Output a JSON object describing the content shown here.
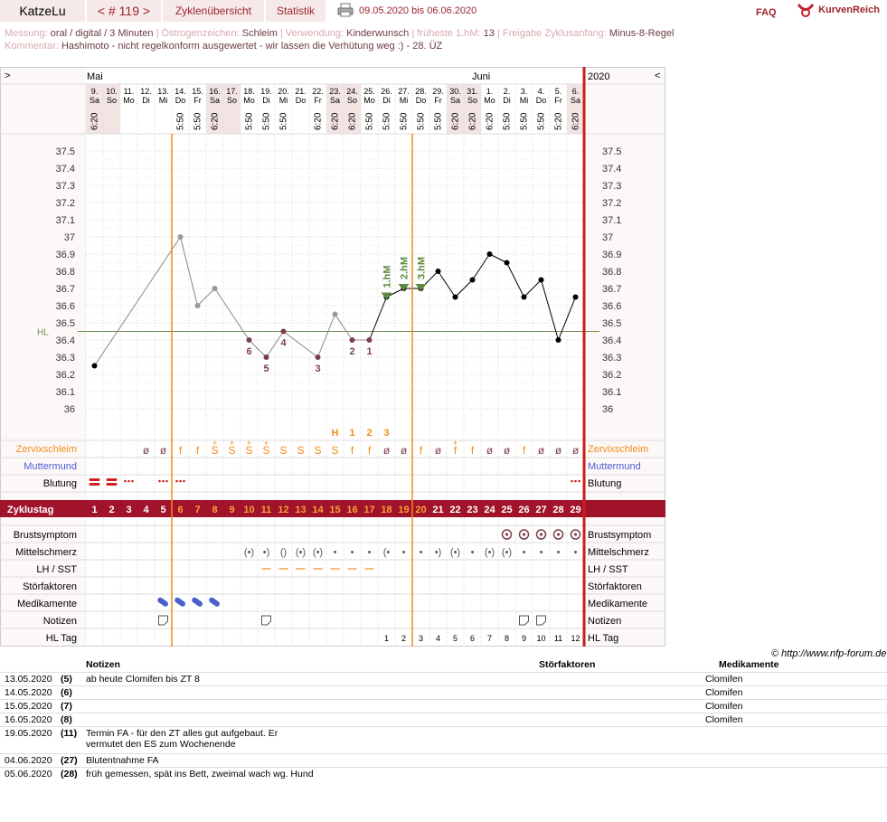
{
  "header": {
    "user": "KatzeLu",
    "cycle_label": "< # 119 >",
    "tab_cycles": "Zyklenübersicht",
    "tab_stats": "Statistik",
    "date_range": "09.05.2020 bis 06.06.2020",
    "faq": "FAQ",
    "brand": "KurvenReich"
  },
  "meta": {
    "measure_label": "Messung:",
    "measure_value": "oral / digital / 3 Minuten",
    "estrogen_label": "Östrogenzeichen:",
    "estrogen_value": "Schleim",
    "use_label": "Verwendung:",
    "use_value": "Kinderwunsch",
    "earliest_label": "früheste 1.hM:",
    "earliest_value": "13",
    "release_label": "Freigabe Zyklusanfang:",
    "release_value": "Minus-8-Regel",
    "comment_label": "Kommentar:",
    "comment_value": "Hashimoto - nicht regelkonform ausgewertet  - wir lassen die Verhütung weg :) - 28. ÜZ"
  },
  "chart_data": {
    "type": "line",
    "nav_left": ">",
    "nav_right": "<",
    "month_may": "Mai",
    "month_june": "Juni",
    "year": "2020",
    "hl_label": "HL",
    "dates": [
      "9.",
      "10.",
      "11.",
      "12.",
      "13.",
      "14.",
      "15.",
      "16.",
      "17.",
      "18.",
      "19.",
      "20.",
      "21.",
      "22.",
      "23.",
      "24.",
      "25.",
      "26.",
      "27.",
      "28.",
      "29.",
      "30.",
      "31.",
      "1.",
      "2.",
      "3.",
      "4.",
      "5.",
      "6."
    ],
    "weekdays": [
      "Sa",
      "So",
      "Mo",
      "Di",
      "Mi",
      "Do",
      "Fr",
      "Sa",
      "So",
      "Mo",
      "Di",
      "Mi",
      "Do",
      "Fr",
      "Sa",
      "So",
      "Mo",
      "Di",
      "Mi",
      "Do",
      "Fr",
      "Sa",
      "So",
      "Mo",
      "Di",
      "Mi",
      "Do",
      "Fr",
      "Sa"
    ],
    "times": [
      "6:20",
      "",
      "",
      "",
      "",
      "5:50",
      "5:50",
      "6:20",
      "",
      "5:50",
      "5:50",
      "5:50",
      "",
      "6:20",
      "6:20",
      "6:20",
      "5:50",
      "5:50",
      "5:50",
      "5:50",
      "5:50",
      "6:20",
      "6:20",
      "6:20",
      "5:50",
      "5:50",
      "5:50",
      "5:20",
      "6:20"
    ],
    "weekend": [
      1,
      1,
      0,
      0,
      0,
      0,
      0,
      1,
      1,
      0,
      0,
      0,
      0,
      0,
      1,
      1,
      0,
      0,
      0,
      0,
      0,
      1,
      1,
      0,
      0,
      0,
      0,
      0,
      1
    ],
    "y_ticks": [
      "37.5",
      "37.4",
      "37.3",
      "37.2",
      "37.1",
      "37",
      "36.9",
      "36.8",
      "36.7",
      "36.6",
      "36.5",
      "36.4",
      "36.3",
      "36.2",
      "36.1",
      "36"
    ],
    "ylim": [
      36.0,
      37.5
    ],
    "coverline": 36.45,
    "temps": [
      36.25,
      null,
      null,
      null,
      null,
      37.0,
      36.6,
      36.7,
      null,
      36.4,
      36.3,
      36.45,
      null,
      36.3,
      36.55,
      36.4,
      36.4,
      36.65,
      36.7,
      36.7,
      36.8,
      36.65,
      36.75,
      36.9,
      36.85,
      36.65,
      36.75,
      36.4,
      36.65
    ],
    "excluded": [
      0,
      0,
      0,
      0,
      0,
      1,
      1,
      1,
      0,
      1,
      1,
      1,
      0,
      1,
      1,
      1,
      1,
      0,
      0,
      0,
      0,
      0,
      0,
      0,
      0,
      0,
      0,
      0,
      0
    ],
    "low_labels": [
      null,
      null,
      null,
      null,
      null,
      null,
      null,
      null,
      null,
      "6",
      "5",
      "4",
      null,
      "3",
      null,
      "2",
      "1",
      null,
      null,
      null,
      null,
      null,
      null,
      null,
      null,
      null,
      null,
      null,
      null
    ],
    "hm_labels": [
      {
        "day": 17,
        "text": "1.hM"
      },
      {
        "day": 18,
        "text": "2.hM"
      },
      {
        "day": 19,
        "text": "3.hM"
      }
    ],
    "peak_labels": [
      null,
      null,
      null,
      null,
      null,
      null,
      null,
      null,
      null,
      null,
      null,
      null,
      null,
      null,
      "H",
      "1",
      "2",
      "3",
      null,
      null,
      null,
      null,
      null,
      null,
      null,
      null,
      null,
      null,
      null
    ],
    "mucus_codes": [
      "",
      "",
      "",
      "ø",
      "ø",
      "f",
      "f",
      "S+",
      "S+",
      "S+",
      "S+",
      "S",
      "S",
      "S",
      "S",
      "f",
      "f",
      "ø",
      "ø",
      "f",
      "ø",
      "f+",
      "f",
      "ø",
      "ø",
      "f",
      "ø",
      "ø",
      "ø"
    ],
    "mucus_label": "Zervixschleim",
    "cervix_label": "Muttermund",
    "bleeding_label": "Blutung",
    "bleeding": [
      "h",
      "h",
      "l",
      "",
      "l",
      "l",
      "",
      "",
      "",
      "",
      "",
      "",
      "",
      "",
      "",
      "",
      "",
      "",
      "",
      "",
      "",
      "",
      "",
      "",
      "",
      "",
      "",
      "",
      "l"
    ],
    "cycle_label": "Zyklustag",
    "cycle_days": [
      "1",
      "2",
      "3",
      "4",
      "5",
      "6",
      "7",
      "8",
      "9",
      "10",
      "11",
      "12",
      "13",
      "14",
      "15",
      "16",
      "17",
      "18",
      "19",
      "20",
      "21",
      "22",
      "23",
      "24",
      "25",
      "26",
      "27",
      "28",
      "29"
    ],
    "breast_label": "Brustsymptom",
    "breast": [
      0,
      0,
      0,
      0,
      0,
      0,
      0,
      0,
      0,
      0,
      0,
      0,
      0,
      0,
      0,
      0,
      0,
      0,
      0,
      0,
      0,
      0,
      0,
      0,
      1,
      1,
      1,
      1,
      1
    ],
    "mittel_label": "Mittelschmerz",
    "mittel": [
      "",
      "",
      "",
      "",
      "",
      "",
      "",
      "",
      "",
      "(•)",
      "•)",
      "()",
      "(•)",
      "(•)",
      "•",
      "•",
      "•",
      "(•",
      "•",
      "•",
      "•)",
      "(•)",
      "•",
      "(•)",
      "(•)",
      "•",
      "•",
      "•",
      "•"
    ],
    "lh_label": "LH / SST",
    "lh": [
      0,
      0,
      0,
      0,
      0,
      0,
      0,
      0,
      0,
      0,
      1,
      1,
      1,
      1,
      1,
      1,
      1,
      0,
      0,
      0,
      0,
      0,
      0,
      0,
      0,
      0,
      0,
      0,
      0
    ],
    "stor_label": "Störfaktoren",
    "med_label": "Medikamente",
    "meds": [
      0,
      0,
      0,
      0,
      1,
      1,
      1,
      1,
      0,
      0,
      0,
      0,
      0,
      0,
      0,
      0,
      0,
      0,
      0,
      0,
      0,
      0,
      0,
      0,
      0,
      0,
      0,
      0,
      0
    ],
    "notes_label": "Notizen",
    "notes_flags": [
      0,
      0,
      0,
      0,
      1,
      0,
      0,
      0,
      0,
      0,
      1,
      0,
      0,
      0,
      0,
      0,
      0,
      0,
      0,
      0,
      0,
      0,
      0,
      0,
      0,
      1,
      1,
      0,
      0
    ],
    "hl_tag_label": "HL Tag",
    "hl_tag": [
      "",
      "",
      "",
      "",
      "",
      "",
      "",
      "",
      "",
      "",
      "",
      "",
      "",
      "",
      "",
      "",
      "",
      "1",
      "2",
      "3",
      "4",
      "5",
      "6",
      "7",
      "8",
      "9",
      "10",
      "11",
      "12"
    ],
    "vline_days": [
      5,
      19
    ],
    "colors": {
      "accent": "#a0252e",
      "orange": "#f28c18",
      "coverline": "#6b8f47",
      "hm": "#5a8a3a",
      "low": "#7b3f47",
      "blue": "#4a5fcf"
    }
  },
  "credit": "© http://www.nfp-forum.de",
  "notes": {
    "col_notes": "Notizen",
    "col_stor": "Störfaktoren",
    "col_med": "Medikamente",
    "rows": [
      {
        "date": "13.05.2020",
        "day": "(5)",
        "note": "ab heute Clomifen bis ZT 8",
        "med": "Clomifen"
      },
      {
        "date": "14.05.2020",
        "day": "(6)",
        "note": "",
        "med": "Clomifen"
      },
      {
        "date": "15.05.2020",
        "day": "(7)",
        "note": "",
        "med": "Clomifen"
      },
      {
        "date": "16.05.2020",
        "day": "(8)",
        "note": "",
        "med": "Clomifen"
      },
      {
        "date": "19.05.2020",
        "day": "(11)",
        "note": "Termin FA - für den ZT alles gut aufgebaut. Er",
        "note2": "vermutet den ES zum Wochenende",
        "med": ""
      },
      {
        "date": "04.06.2020",
        "day": "(27)",
        "note": "Blutentnahme FA",
        "med": ""
      },
      {
        "date": "05.06.2020",
        "day": "(28)",
        "note": "früh gemessen, spät ins Bett, zweimal wach wg. Hund",
        "med": ""
      }
    ]
  }
}
